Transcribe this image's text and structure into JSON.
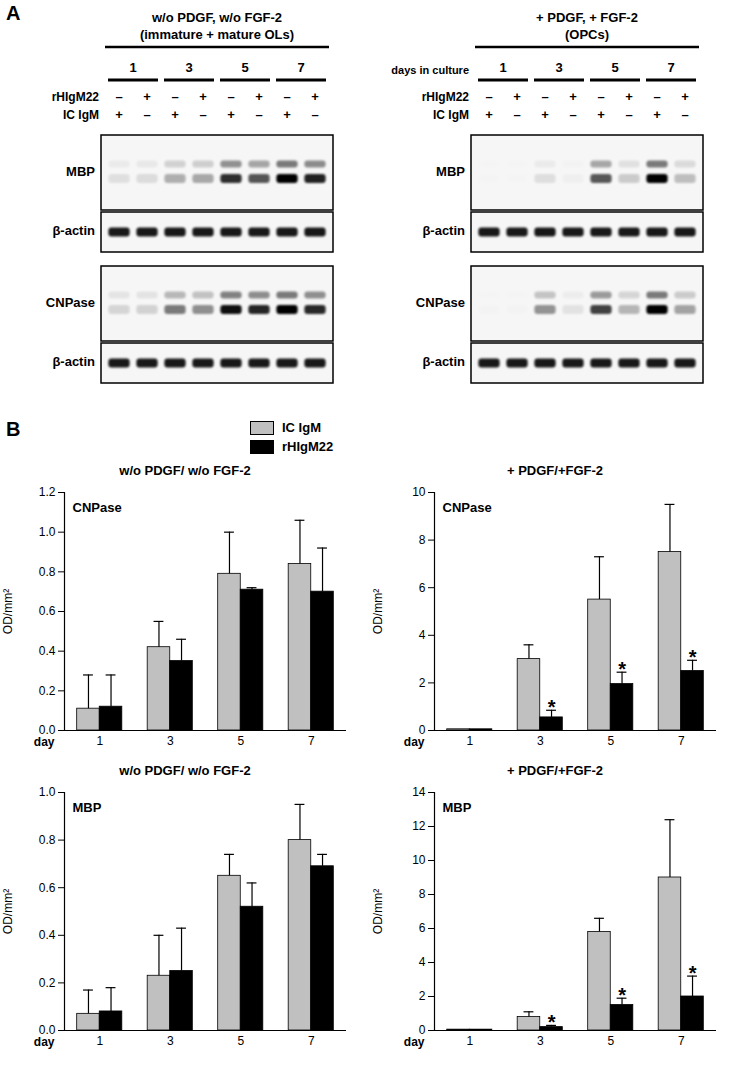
{
  "panel_labels": [
    "A",
    "B"
  ],
  "blots": [
    {
      "title": "w/o PDGF, w/o FGF-2",
      "subtitle": "(immature + mature OLs)",
      "days": [
        "1",
        "3",
        "5",
        "7"
      ],
      "treatments": [
        {
          "name": "rHIgM22",
          "signs": [
            "–",
            "+",
            "–",
            "+",
            "–",
            "+",
            "–",
            "+"
          ]
        },
        {
          "name": "IC IgM",
          "signs": [
            "+",
            "–",
            "+",
            "–",
            "+",
            "–",
            "+",
            "–"
          ]
        }
      ],
      "rows": [
        "MBP",
        "β-actin",
        "CNPase",
        "β-actin"
      ]
    },
    {
      "title": "+ PDGF, + FGF-2",
      "subtitle": "(OPCs)",
      "days_label": "days in culture",
      "days": [
        "1",
        "3",
        "5",
        "7"
      ],
      "treatments": [
        {
          "name": "rHIgM22",
          "signs": [
            "–",
            "+",
            "–",
            "+",
            "–",
            "+",
            "–",
            "+"
          ]
        },
        {
          "name": "IC IgM",
          "signs": [
            "+",
            "–",
            "+",
            "–",
            "+",
            "–",
            "+",
            "–"
          ]
        }
      ],
      "rows": [
        "MBP",
        "β-actin",
        "CNPase",
        "β-actin"
      ]
    }
  ],
  "chart_data": [
    {
      "type": "bar",
      "title": "w/o PDGF/ w/o FGF-2",
      "inset_label": "CNPase",
      "xlabel": "day",
      "ylabel": "OD/mm²",
      "categories": [
        "1",
        "3",
        "5",
        "7"
      ],
      "series": [
        {
          "name": "IC IgM",
          "color": "#c0c0c0",
          "values": [
            0.11,
            0.42,
            0.79,
            0.84
          ],
          "errors": [
            0.17,
            0.13,
            0.21,
            0.22
          ]
        },
        {
          "name": "rHIgM22",
          "color": "#000000",
          "values": [
            0.12,
            0.35,
            0.71,
            0.7
          ],
          "errors": [
            0.16,
            0.11,
            0.01,
            0.22
          ]
        }
      ],
      "ylim": [
        0,
        1.2
      ],
      "yticks": [
        {
          "value": 0,
          "label": "0.0"
        },
        {
          "value": 0.2,
          "label": "0.2"
        },
        {
          "value": 0.4,
          "label": "0.4"
        },
        {
          "value": 0.6,
          "label": "0.6"
        },
        {
          "value": 0.8,
          "label": "0.8"
        },
        {
          "value": 1,
          "label": "1.0"
        },
        {
          "value": 1.2,
          "label": "1.2"
        }
      ],
      "annotations": []
    },
    {
      "type": "bar",
      "title": "+ PDGF/+FGF-2",
      "inset_label": "CNPase",
      "xlabel": "day",
      "ylabel": "OD/mm²",
      "categories": [
        "1",
        "3",
        "5",
        "7"
      ],
      "series": [
        {
          "name": "IC IgM",
          "color": "#c0c0c0",
          "values": [
            0.05,
            3.0,
            5.5,
            7.5
          ],
          "errors": [
            0,
            0.6,
            1.8,
            2.0
          ]
        },
        {
          "name": "rHIgM22",
          "color": "#000000",
          "values": [
            0.05,
            0.55,
            1.95,
            2.5
          ],
          "errors": [
            0,
            0.3,
            0.5,
            0.45
          ]
        }
      ],
      "ylim": [
        0,
        10
      ],
      "yticks": [
        0,
        2,
        4,
        6,
        8,
        10
      ],
      "annotations": [
        {
          "category": "3",
          "series": "rHIgM22",
          "text": "*"
        },
        {
          "category": "5",
          "series": "rHIgM22",
          "text": "*"
        },
        {
          "category": "7",
          "series": "rHIgM22",
          "text": "*"
        }
      ]
    },
    {
      "type": "bar",
      "title": "w/o PDGF/ w/o FGF-2",
      "inset_label": "MBP",
      "xlabel": "day",
      "ylabel": "OD/mm²",
      "categories": [
        "1",
        "3",
        "5",
        "7"
      ],
      "series": [
        {
          "name": "IC IgM",
          "color": "#c0c0c0",
          "values": [
            0.07,
            0.23,
            0.65,
            0.8
          ],
          "errors": [
            0.1,
            0.17,
            0.09,
            0.15
          ]
        },
        {
          "name": "rHIgM22",
          "color": "#000000",
          "values": [
            0.08,
            0.25,
            0.52,
            0.69
          ],
          "errors": [
            0.1,
            0.18,
            0.1,
            0.05
          ]
        }
      ],
      "ylim": [
        0,
        1.0
      ],
      "yticks": [
        {
          "value": 0,
          "label": "0.0"
        },
        {
          "value": 0.2,
          "label": "0.2"
        },
        {
          "value": 0.4,
          "label": "0.4"
        },
        {
          "value": 0.6,
          "label": "0.6"
        },
        {
          "value": 0.8,
          "label": "0.8"
        },
        {
          "value": 1,
          "label": "1.0"
        }
      ],
      "annotations": []
    },
    {
      "type": "bar",
      "title": "+ PDGF/+FGF-2",
      "inset_label": "MBP",
      "xlabel": "day",
      "ylabel": "OD/mm²",
      "categories": [
        "1",
        "3",
        "5",
        "7"
      ],
      "series": [
        {
          "name": "IC IgM",
          "color": "#c0c0c0",
          "values": [
            0.05,
            0.8,
            5.8,
            9.0
          ],
          "errors": [
            0,
            0.3,
            0.8,
            3.4
          ]
        },
        {
          "name": "rHIgM22",
          "color": "#000000",
          "values": [
            0.05,
            0.2,
            1.5,
            2.0
          ],
          "errors": [
            0,
            0.1,
            0.4,
            1.2
          ]
        }
      ],
      "ylim": [
        0,
        14
      ],
      "yticks": [
        0,
        2,
        4,
        6,
        8,
        10,
        12,
        14
      ],
      "annotations": [
        {
          "category": "3",
          "series": "rHIgM22",
          "text": "*"
        },
        {
          "category": "5",
          "series": "rHIgM22",
          "text": "*"
        },
        {
          "category": "7",
          "series": "rHIgM22",
          "text": "*"
        }
      ]
    }
  ]
}
